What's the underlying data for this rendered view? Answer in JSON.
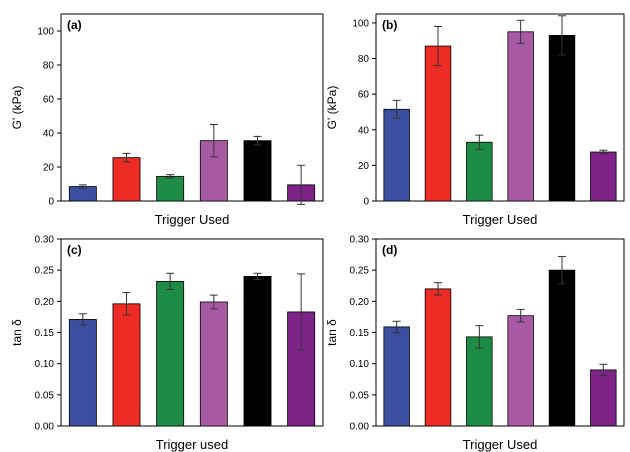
{
  "chart_data": [
    {
      "type": "bar",
      "panel_label": "(a)",
      "ylabel": "G' (kPa)",
      "xlabel": "Trigger Used",
      "ylim": [
        0,
        110
      ],
      "yticks": [
        0,
        20,
        40,
        60,
        80,
        100
      ],
      "values": [
        8.5,
        25.5,
        14.5,
        35.5,
        35.5,
        9.5
      ],
      "errors": [
        1.0,
        2.5,
        1.0,
        9.5,
        2.5,
        11.5
      ],
      "colors": [
        "#3a4fa0",
        "#ee2b24",
        "#1f8c45",
        "#a859a4",
        "#000000",
        "#7e2489"
      ]
    },
    {
      "type": "bar",
      "panel_label": "(b)",
      "ylabel": "G' (kPa)",
      "xlabel": "Trigger Used",
      "ylim": [
        0,
        105
      ],
      "yticks": [
        0,
        20,
        40,
        60,
        80,
        100
      ],
      "values": [
        51.5,
        87.0,
        33.0,
        95.0,
        93.0,
        27.5
      ],
      "errors": [
        5.0,
        11.0,
        4.0,
        6.5,
        11.0,
        1.0
      ],
      "colors": [
        "#3a4fa0",
        "#ee2b24",
        "#1f8c45",
        "#a859a4",
        "#000000",
        "#7e2489"
      ]
    },
    {
      "type": "bar",
      "panel_label": "(c)",
      "ylabel": "tan δ",
      "xlabel": "Trigger used",
      "ylim": [
        0,
        0.3
      ],
      "yticks": [
        0.0,
        0.05,
        0.1,
        0.15,
        0.2,
        0.25,
        0.3
      ],
      "values": [
        0.171,
        0.196,
        0.232,
        0.199,
        0.24,
        0.183
      ],
      "errors": [
        0.009,
        0.018,
        0.013,
        0.011,
        0.005,
        0.061
      ],
      "colors": [
        "#3a4fa0",
        "#ee2b24",
        "#1f8c45",
        "#a859a4",
        "#000000",
        "#7e2489"
      ]
    },
    {
      "type": "bar",
      "panel_label": "(d)",
      "ylabel": "tan δ",
      "xlabel": "Trigger Used",
      "ylim": [
        0,
        0.3
      ],
      "yticks": [
        0.0,
        0.05,
        0.1,
        0.15,
        0.2,
        0.25,
        0.3
      ],
      "values": [
        0.159,
        0.22,
        0.143,
        0.177,
        0.25,
        0.09
      ],
      "errors": [
        0.009,
        0.01,
        0.018,
        0.01,
        0.022,
        0.009
      ],
      "colors": [
        "#3a4fa0",
        "#ee2b24",
        "#1f8c45",
        "#a859a4",
        "#000000",
        "#7e2489"
      ]
    }
  ]
}
